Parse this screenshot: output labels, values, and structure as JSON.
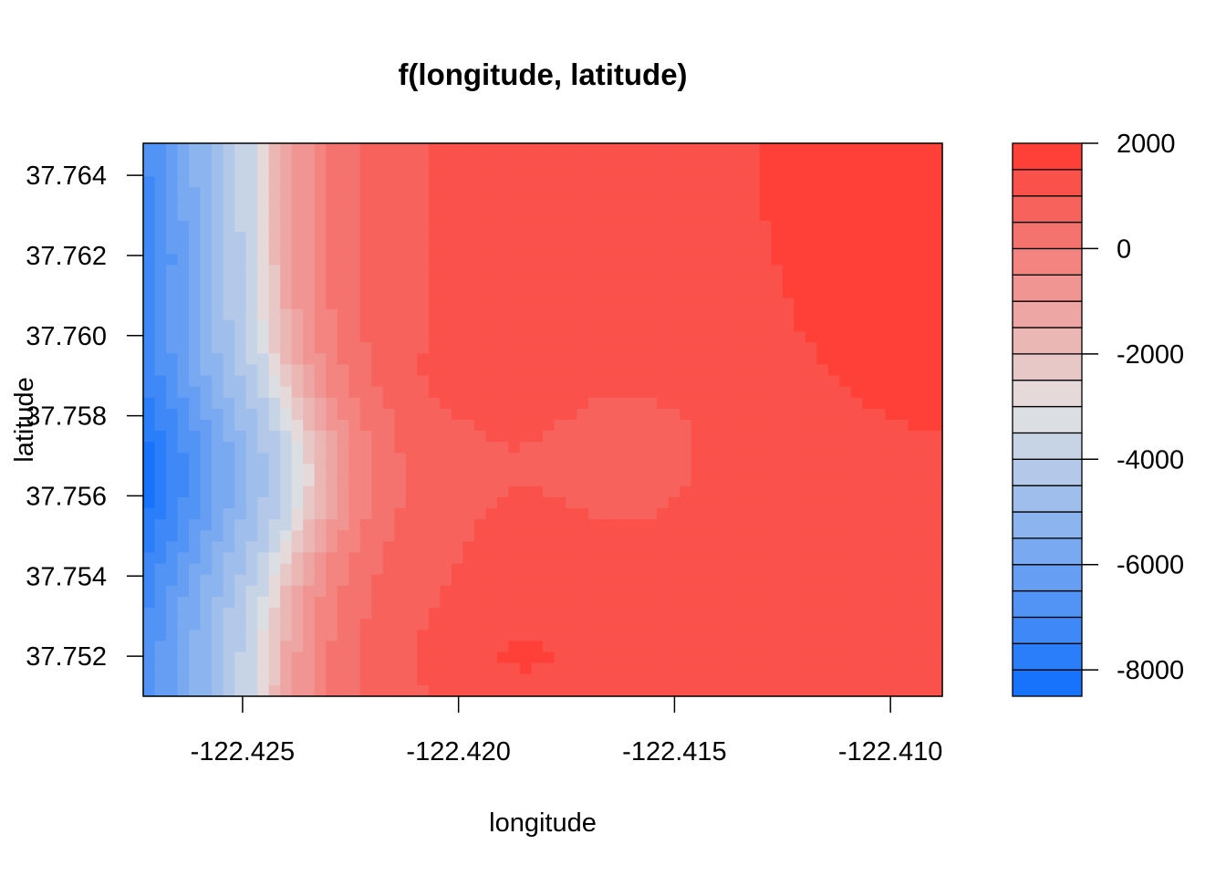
{
  "chart_data": {
    "type": "heatmap",
    "title": "f(longitude, latitude)",
    "xlabel": "longitude",
    "ylabel": "latitude",
    "xlim": [
      -122.4273,
      -122.4088
    ],
    "ylim": [
      37.751,
      37.7648
    ],
    "x_ticks": [
      -122.425,
      -122.42,
      -122.415,
      -122.41
    ],
    "x_tick_labels": [
      "-122.425",
      "-122.420",
      "-122.415",
      "-122.410"
    ],
    "y_ticks": [
      37.752,
      37.754,
      37.756,
      37.758,
      37.76,
      37.762,
      37.764
    ],
    "y_tick_labels": [
      "37.752",
      "37.754",
      "37.756",
      "37.758",
      "37.760",
      "37.762",
      "37.764"
    ],
    "colorbar": {
      "min": -8500,
      "max": 2000,
      "levels": 21,
      "ticks": [
        2000,
        0,
        -2000,
        -4000,
        -6000,
        -8000
      ],
      "tick_labels": [
        "2000",
        "0",
        "-2000",
        "-4000",
        "-6000",
        "-8000"
      ],
      "colors": {
        "low": "#0d6efd",
        "mid": "#e3e3e3",
        "high": "#ff3730"
      }
    },
    "grid": false,
    "legend": "right colorbar"
  }
}
